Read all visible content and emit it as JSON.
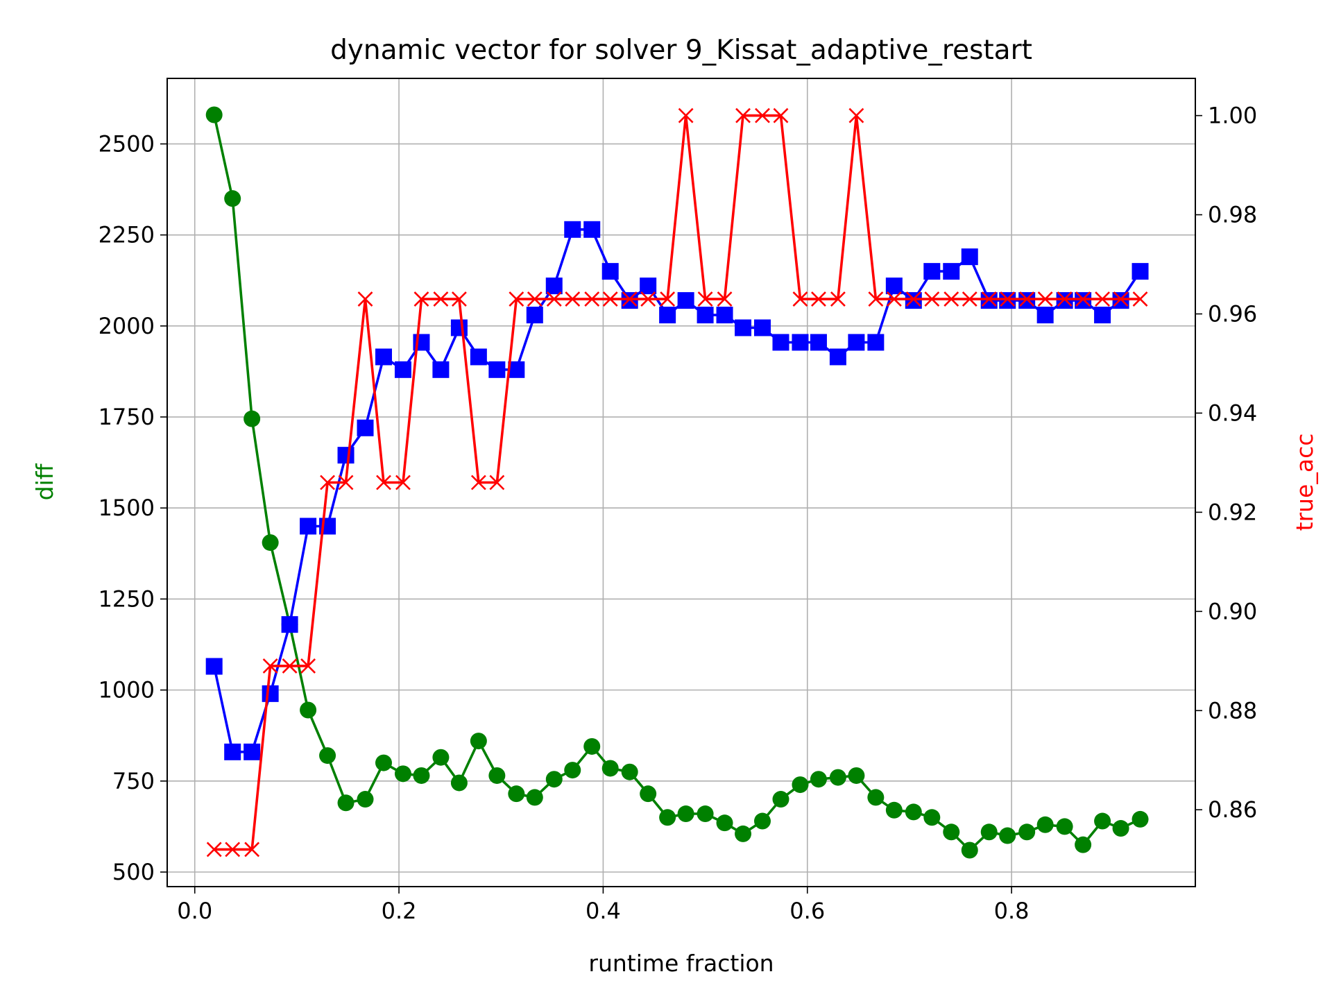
{
  "chart_data": {
    "type": "line",
    "title": "dynamic vector for solver 9_Kissat_adaptive_restart",
    "xlabel": "runtime fraction",
    "ylabel_left": "diff",
    "ylabel_right": "true_acc",
    "xlim": [
      -0.027,
      0.98
    ],
    "ylim_left": [
      460,
      2680
    ],
    "ylim_right": [
      0.8445,
      1.0075
    ],
    "x_ticks": [
      "0.0",
      "0.2",
      "0.4",
      "0.6",
      "0.8"
    ],
    "x_tick_values": [
      0.0,
      0.2,
      0.4,
      0.6,
      0.8
    ],
    "y_left_ticks": [
      "500",
      "750",
      "1000",
      "1250",
      "1500",
      "1750",
      "2000",
      "2250",
      "2500"
    ],
    "y_left_tick_values": [
      500,
      750,
      1000,
      1250,
      1500,
      1750,
      2000,
      2250,
      2500
    ],
    "y_right_ticks": [
      "0.86",
      "0.88",
      "0.90",
      "0.92",
      "0.94",
      "0.96",
      "0.98",
      "1.00"
    ],
    "y_right_tick_values": [
      0.86,
      0.88,
      0.9,
      0.92,
      0.94,
      0.96,
      0.98,
      1.0
    ],
    "grid": true,
    "colors": {
      "diff": "#008000",
      "blue": "#0000ff",
      "true_acc": "#ff0000",
      "grid": "#b0b0b0",
      "axis_title_left": "#008000",
      "axis_title_right": "#ff0000"
    },
    "x": [
      0.019,
      0.037,
      0.056,
      0.074,
      0.093,
      0.111,
      0.13,
      0.148,
      0.167,
      0.185,
      0.204,
      0.222,
      0.241,
      0.259,
      0.278,
      0.296,
      0.315,
      0.333,
      0.352,
      0.37,
      0.389,
      0.407,
      0.426,
      0.444,
      0.463,
      0.481,
      0.5,
      0.519,
      0.537,
      0.556,
      0.574,
      0.593,
      0.611,
      0.63,
      0.648,
      0.667,
      0.685,
      0.704,
      0.722,
      0.741,
      0.759,
      0.778,
      0.796,
      0.815,
      0.833,
      0.852,
      0.87,
      0.889,
      0.907,
      0.926
    ],
    "series": [
      {
        "axis": "left",
        "marker": "circle",
        "color": "#008000",
        "values": [
          2580,
          2350,
          1745,
          1405,
          1180,
          945,
          820,
          690,
          700,
          800,
          770,
          765,
          815,
          745,
          860,
          765,
          715,
          705,
          755,
          780,
          845,
          785,
          775,
          715,
          650,
          660,
          660,
          635,
          605,
          640,
          700,
          740,
          755,
          760,
          765,
          705,
          670,
          665,
          650,
          610,
          560,
          610,
          600,
          610,
          630,
          625,
          575,
          640,
          620,
          645
        ]
      },
      {
        "axis": "left",
        "marker": "square",
        "color": "#0000ff",
        "values": [
          1065,
          830,
          830,
          990,
          1180,
          1450,
          1450,
          1645,
          1720,
          1915,
          1880,
          1955,
          1880,
          1995,
          1915,
          1880,
          1880,
          2030,
          2110,
          2265,
          2265,
          2150,
          2070,
          2110,
          2030,
          2070,
          2030,
          2030,
          1995,
          1995,
          1955,
          1955,
          1955,
          1915,
          1955,
          1955,
          2110,
          2070,
          2150,
          2150,
          2190,
          2070,
          2070,
          2070,
          2030,
          2070,
          2070,
          2030,
          2070,
          2150
        ]
      },
      {
        "axis": "right",
        "marker": "x",
        "color": "#ff0000",
        "values": [
          0.852,
          0.852,
          0.852,
          0.889,
          0.889,
          0.889,
          0.926,
          0.926,
          0.963,
          0.926,
          0.926,
          0.963,
          0.963,
          0.963,
          0.926,
          0.926,
          0.963,
          0.963,
          0.963,
          0.963,
          0.963,
          0.963,
          0.963,
          0.963,
          0.963,
          1.0,
          0.963,
          0.963,
          1.0,
          1.0,
          1.0,
          0.963,
          0.963,
          0.963,
          1.0,
          0.963,
          0.963,
          0.963,
          0.963,
          0.963,
          0.963,
          0.963,
          0.963,
          0.963,
          0.963,
          0.963,
          0.963,
          0.963,
          0.963,
          0.963
        ]
      }
    ]
  }
}
